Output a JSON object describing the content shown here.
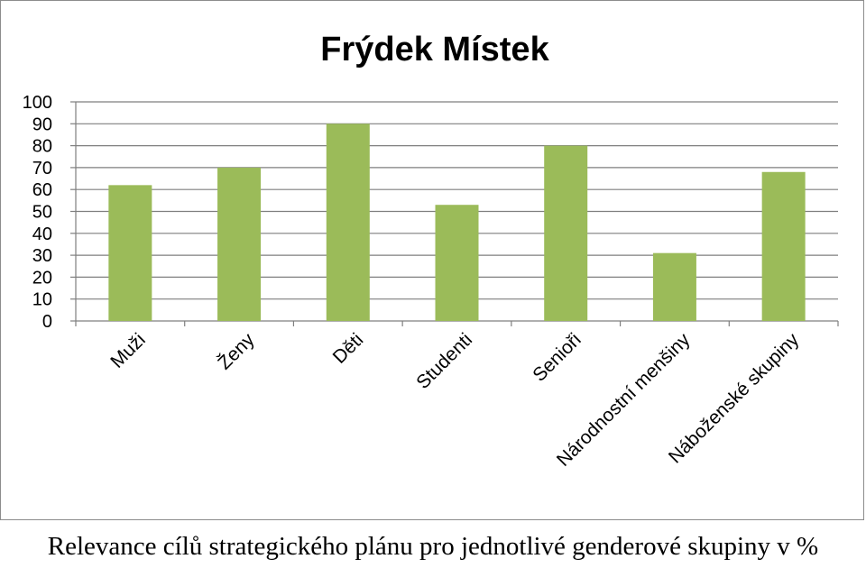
{
  "chart_data": {
    "type": "bar",
    "title": "Frýdek Místek",
    "categories": [
      "Muži",
      "Ženy",
      "Děti",
      "Studenti",
      "Senioři",
      "Národnostní menšiny",
      "Náboženské skupiny"
    ],
    "values": [
      62,
      70,
      90,
      53,
      80,
      31,
      68
    ],
    "yticks": [
      "0",
      "10",
      "20",
      "30",
      "40",
      "50",
      "60",
      "70",
      "80",
      "90",
      "100"
    ],
    "ylim": [
      0,
      100
    ],
    "grid": true,
    "legend": "none",
    "bar_color": "#9bbb59"
  },
  "caption": "Relevance cílů strategického plánu pro jednotlivé genderové skupiny v %",
  "colors": {
    "grid": "#7f7f7f",
    "frame": "#8c8c8c"
  }
}
